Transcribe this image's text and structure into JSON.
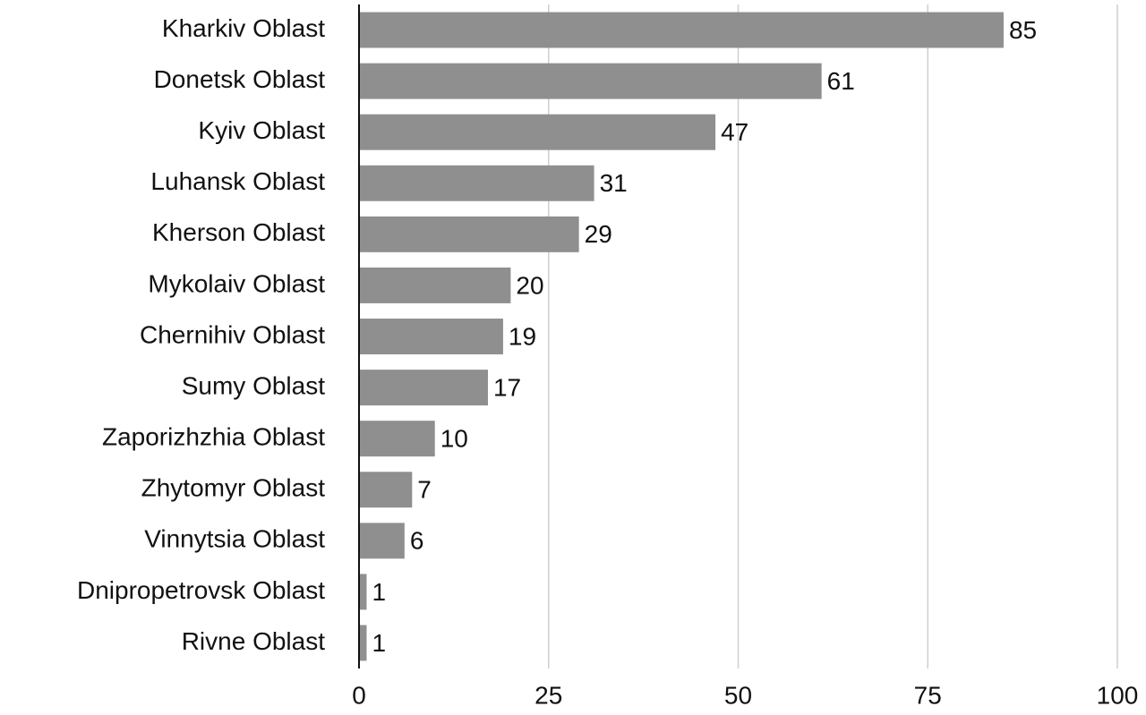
{
  "chart_data": {
    "type": "barh",
    "categories": [
      "Kharkiv Oblast",
      "Donetsk Oblast",
      "Kyiv Oblast",
      "Luhansk Oblast",
      "Kherson Oblast",
      "Mykolaiv Oblast",
      "Chernihiv Oblast",
      "Sumy Oblast",
      "Zaporizhzhia Oblast",
      "Zhytomyr Oblast",
      "Vinnytsia Oblast",
      "Dnipropetrovsk Oblast",
      "Rivne Oblast"
    ],
    "values": [
      85,
      61,
      47,
      31,
      29,
      20,
      19,
      17,
      10,
      7,
      6,
      1,
      1
    ],
    "color": "#8f8f8f",
    "xlim": [
      0,
      100
    ],
    "xticks": [
      0,
      25,
      50,
      75,
      100
    ],
    "grid": true
  }
}
